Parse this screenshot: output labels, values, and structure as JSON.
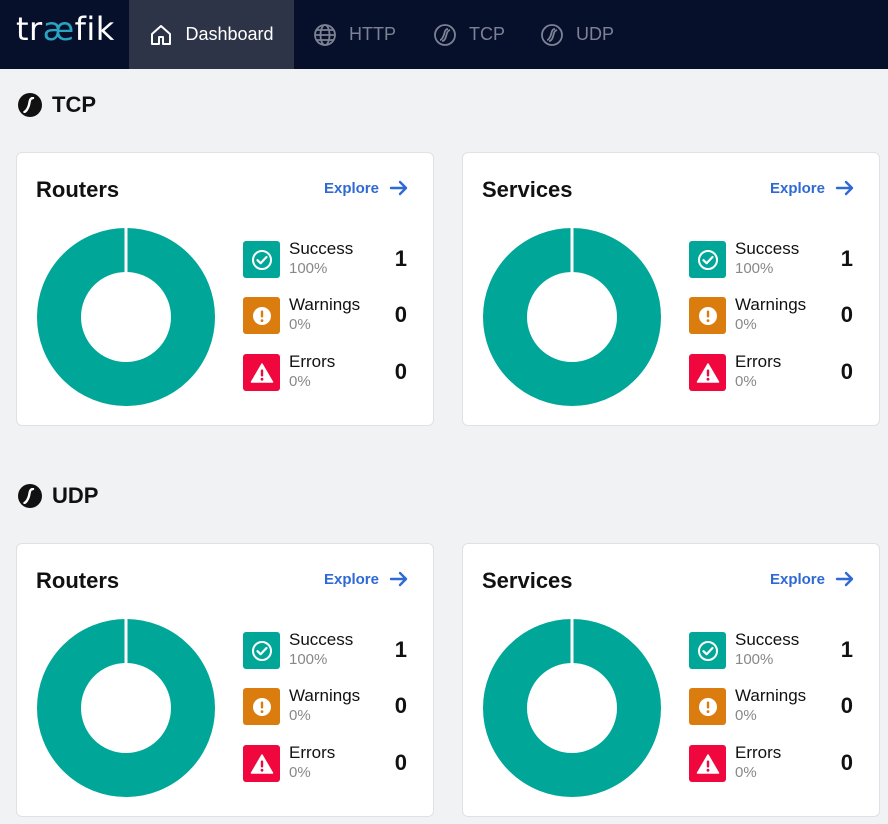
{
  "app": {
    "logo_text_prefix": "tr",
    "logo_text_ae": "æ",
    "logo_text_suffix": "fik"
  },
  "nav": {
    "tabs": [
      {
        "label": "Dashboard",
        "icon": "home-icon",
        "active": true
      },
      {
        "label": "HTTP",
        "icon": "globe-icon"
      },
      {
        "label": "TCP",
        "icon": "tcp-icon"
      },
      {
        "label": "UDP",
        "icon": "udp-icon"
      }
    ]
  },
  "colors": {
    "success": "#00a697",
    "warning": "#db7c0f",
    "error": "#f0073e",
    "accent": "#2f6ad4",
    "topbar": "#06102b"
  },
  "sections": [
    {
      "title": "TCP",
      "cards": [
        {
          "title": "Routers",
          "explore": "Explore",
          "stats": [
            {
              "label": "Success",
              "pct": "100%",
              "count": "1"
            },
            {
              "label": "Warnings",
              "pct": "0%",
              "count": "0"
            },
            {
              "label": "Errors",
              "pct": "0%",
              "count": "0"
            }
          ]
        },
        {
          "title": "Services",
          "explore": "Explore",
          "stats": [
            {
              "label": "Success",
              "pct": "100%",
              "count": "1"
            },
            {
              "label": "Warnings",
              "pct": "0%",
              "count": "0"
            },
            {
              "label": "Errors",
              "pct": "0%",
              "count": "0"
            }
          ]
        }
      ]
    },
    {
      "title": "UDP",
      "cards": [
        {
          "title": "Routers",
          "explore": "Explore",
          "stats": [
            {
              "label": "Success",
              "pct": "100%",
              "count": "1"
            },
            {
              "label": "Warnings",
              "pct": "0%",
              "count": "0"
            },
            {
              "label": "Errors",
              "pct": "0%",
              "count": "0"
            }
          ]
        },
        {
          "title": "Services",
          "explore": "Explore",
          "stats": [
            {
              "label": "Success",
              "pct": "100%",
              "count": "1"
            },
            {
              "label": "Warnings",
              "pct": "0%",
              "count": "0"
            },
            {
              "label": "Errors",
              "pct": "0%",
              "count": "0"
            }
          ]
        }
      ]
    }
  ]
}
